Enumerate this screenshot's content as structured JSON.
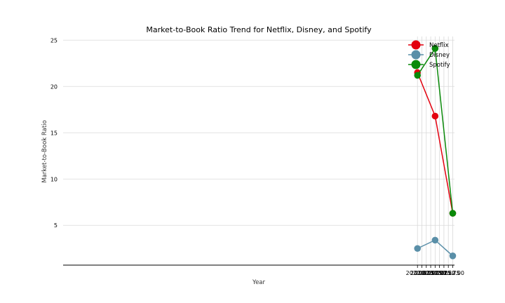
{
  "chart_data": {
    "type": "line",
    "title": "Market-to-Book Ratio Trend for Netflix, Disney, and Spotify",
    "xlabel": "Year",
    "ylabel": "Market-to-Book Ratio",
    "xlim": [
      1999.9,
      2022.1
    ],
    "ylim": [
      0.7,
      25.4
    ],
    "xticks": [
      2020.0,
      2020.25,
      2020.5,
      2020.75,
      2021.0,
      2021.25,
      2021.5,
      2021.75,
      2022.0
    ],
    "xtick_labels": [
      "2020.00",
      "2020.25",
      "2020.50",
      "2020.75",
      "2021.00",
      "2021.25",
      "2021.50",
      "2021.75",
      "2022.00"
    ],
    "yticks": [
      5,
      10,
      15,
      20,
      25
    ],
    "ytick_labels": [
      "5",
      "10",
      "15",
      "20",
      "25"
    ],
    "grid": true,
    "legend_position": "top-right",
    "x": [
      2020,
      2021,
      2022
    ],
    "series": [
      {
        "name": "Netflix",
        "color": "#e3000f",
        "values": [
          21.5,
          16.8,
          6.3
        ]
      },
      {
        "name": "Disney",
        "color": "#5a8fa8",
        "values": [
          2.5,
          3.4,
          1.7
        ]
      },
      {
        "name": "Spotify",
        "color": "#0a8a0a",
        "values": [
          21.2,
          24.1,
          6.3
        ]
      }
    ]
  }
}
